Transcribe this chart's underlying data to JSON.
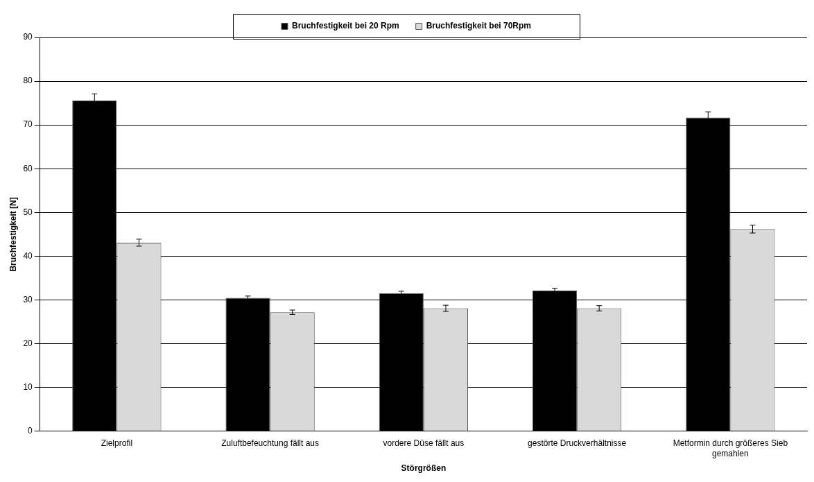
{
  "chart_data": {
    "type": "bar",
    "xlabel": "Störgrößen",
    "ylabel": "Bruchfestigkeit [N]",
    "categories": [
      "Zielprofil",
      "Zuluftbefeuchtung fällt aus",
      "vordere Düse fällt aus",
      "gestörte Druckverhältnisse",
      "Metformin durch größeres Sieb gemahlen"
    ],
    "series": [
      {
        "name": "Bruchfestigkeit bei 20 Rpm",
        "color": "#000000",
        "values": [
          75.6,
          30.5,
          31.5,
          32.2,
          71.7
        ],
        "errors": [
          1.5,
          0.4,
          0.5,
          0.5,
          1.3
        ]
      },
      {
        "name": "Bruchfestigkeit bei 70Rpm",
        "color": "#d9d9d9",
        "values": [
          43.1,
          27.2,
          28.1,
          28.1,
          46.2
        ],
        "errors": [
          0.8,
          0.5,
          0.7,
          0.6,
          0.9
        ]
      }
    ],
    "ylim": [
      0,
      90
    ],
    "yticks": [
      0,
      10,
      20,
      30,
      40,
      50,
      60,
      70,
      80,
      90
    ],
    "grid": "y",
    "legend": "top"
  }
}
